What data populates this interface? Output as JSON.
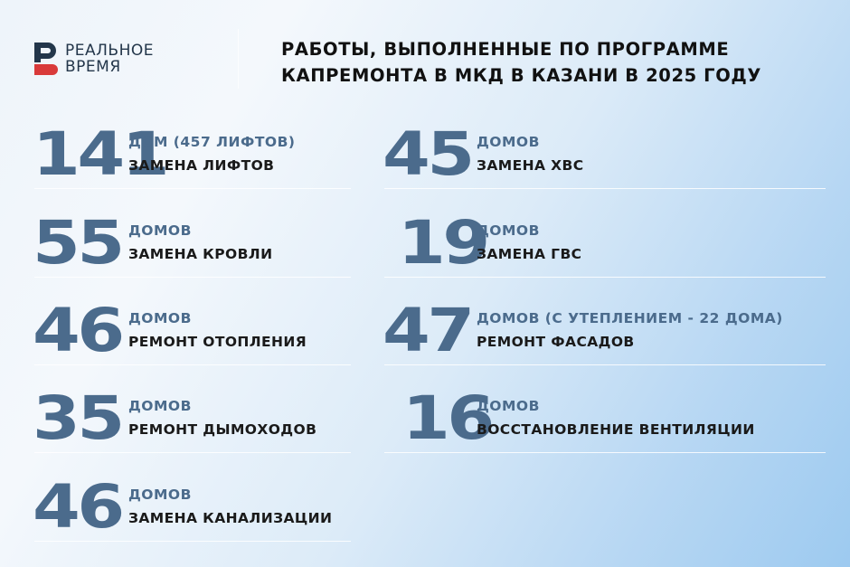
{
  "logo": {
    "line1": "РЕАЛЬНОЕ",
    "line2": "ВРЕМЯ",
    "colors": {
      "dark": "#23364a",
      "red": "#d93a3a"
    }
  },
  "title": {
    "line1": "РАБОТЫ, ВЫПОЛНЕННЫЕ ПО ПРОГРАММЕ",
    "line2": "КАПРЕМОНТА В МКД В КАЗАНИ В 2025 ГОДУ"
  },
  "colors": {
    "number": "#4b6b8c",
    "text": "#1a1a1a"
  },
  "left": [
    {
      "number": "141",
      "sub": "ДОМ (457 ЛИФТОВ)",
      "label": "ЗАМЕНА ЛИФТОВ"
    },
    {
      "number": "55",
      "sub": "ДОМОВ",
      "label": "ЗАМЕНА КРОВЛИ"
    },
    {
      "number": "46",
      "sub": "ДОМОВ",
      "label": "РЕМОНТ ОТОПЛЕНИЯ"
    },
    {
      "number": "35",
      "sub": "ДОМОВ",
      "label": "РЕМОНТ ДЫМОХОДОВ"
    },
    {
      "number": "46",
      "sub": "ДОМОВ",
      "label": "ЗАМЕНА КАНАЛИЗАЦИИ"
    }
  ],
  "right": [
    {
      "number": "45",
      "sub": "ДОМОВ",
      "label": "ЗАМЕНА ХВС"
    },
    {
      "number": "19",
      "sub": "ДОМОВ",
      "label": "ЗАМЕНА ГВС"
    },
    {
      "number": "47",
      "sub": "ДОМОВ (С УТЕПЛЕНИЕМ - 22 ДОМА)",
      "label": "РЕМОНТ ФАСАДОВ"
    },
    {
      "number": "16",
      "sub": "ДОМОВ",
      "label": "ВОССТАНОВЛЕНИЕ ВЕНТИЛЯЦИИ"
    }
  ]
}
